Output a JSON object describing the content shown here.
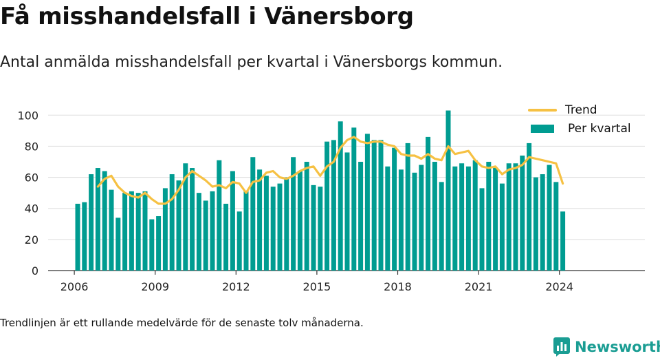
{
  "header": {
    "title": "Få misshandelsfall i Vänersborg",
    "subtitle": "Antal anmälda misshandelsfall per kvartal i Vänersborgs kommun."
  },
  "footer": {
    "note": "Trendlinjen är ett rullande medelvärde för de senaste tolv månaderna.",
    "brand": "Newsworthy"
  },
  "colors": {
    "bar": "#009c91",
    "trend": "#f6c143",
    "grid": "#dddddd",
    "brand": "#1a9d93"
  },
  "icons": {
    "brand_logo": "newsworthy-bar-chart-icon"
  },
  "chart_data": {
    "type": "bar",
    "title": "",
    "xlabel": "",
    "ylabel": "",
    "ylim": [
      0,
      105
    ],
    "yticks": [
      0,
      20,
      40,
      60,
      80,
      100
    ],
    "xticks": [
      "2006",
      "2009",
      "2012",
      "2015",
      "2018",
      "2021",
      "2024"
    ],
    "x_start_year": 2006,
    "legend_position": "top-right",
    "grid": true,
    "categories": [
      "2006 Q1",
      "2006 Q2",
      "2006 Q3",
      "2006 Q4",
      "2007 Q1",
      "2007 Q2",
      "2007 Q3",
      "2007 Q4",
      "2008 Q1",
      "2008 Q2",
      "2008 Q3",
      "2008 Q4",
      "2009 Q1",
      "2009 Q2",
      "2009 Q3",
      "2009 Q4",
      "2010 Q1",
      "2010 Q2",
      "2010 Q3",
      "2010 Q4",
      "2011 Q1",
      "2011 Q2",
      "2011 Q3",
      "2011 Q4",
      "2012 Q1",
      "2012 Q2",
      "2012 Q3",
      "2012 Q4",
      "2013 Q1",
      "2013 Q2",
      "2013 Q3",
      "2013 Q4",
      "2014 Q1",
      "2014 Q2",
      "2014 Q3",
      "2014 Q4",
      "2015 Q1",
      "2015 Q2",
      "2015 Q3",
      "2015 Q4",
      "2016 Q1",
      "2016 Q2",
      "2016 Q3",
      "2016 Q4",
      "2017 Q1",
      "2017 Q2",
      "2017 Q3",
      "2017 Q4",
      "2018 Q1",
      "2018 Q2",
      "2018 Q3",
      "2018 Q4",
      "2019 Q1",
      "2019 Q2",
      "2019 Q3",
      "2019 Q4",
      "2020 Q1",
      "2020 Q2",
      "2020 Q3",
      "2020 Q4",
      "2021 Q1",
      "2021 Q2",
      "2021 Q3",
      "2021 Q4",
      "2022 Q1",
      "2022 Q2",
      "2022 Q3",
      "2022 Q4",
      "2023 Q1",
      "2023 Q2",
      "2023 Q3",
      "2023 Q4",
      "2024 Q1"
    ],
    "series": [
      {
        "name": "Per kvartal",
        "type": "bar",
        "values": [
          43,
          44,
          62,
          66,
          64,
          52,
          34,
          50,
          51,
          50,
          51,
          33,
          35,
          53,
          62,
          58,
          69,
          66,
          50,
          45,
          51,
          71,
          43,
          64,
          38,
          51,
          73,
          65,
          61,
          54,
          56,
          60,
          73,
          64,
          70,
          55,
          54,
          83,
          84,
          96,
          76,
          92,
          70,
          88,
          84,
          84,
          67,
          79,
          65,
          82,
          63,
          68,
          86,
          70,
          57,
          103,
          67,
          69,
          67,
          71,
          53,
          70,
          66,
          56,
          69,
          69,
          74,
          82,
          60,
          62,
          68,
          57,
          38
        ]
      },
      {
        "name": "Trend",
        "type": "line",
        "values": [
          null,
          null,
          null,
          54,
          59,
          61,
          54,
          50,
          48,
          47,
          50,
          46,
          43,
          43,
          46,
          52,
          60,
          64,
          61,
          58,
          54,
          55,
          53,
          57,
          56,
          50,
          57,
          58,
          63,
          64,
          60,
          59,
          61,
          64,
          66,
          67,
          61,
          67,
          70,
          79,
          84,
          86,
          83,
          82,
          83,
          83,
          81,
          80,
          75,
          74,
          74,
          72,
          75,
          72,
          71,
          80,
          75,
          76,
          77,
          71,
          67,
          66,
          67,
          62,
          65,
          66,
          68,
          73,
          72,
          71,
          70,
          69,
          56
        ]
      }
    ]
  }
}
